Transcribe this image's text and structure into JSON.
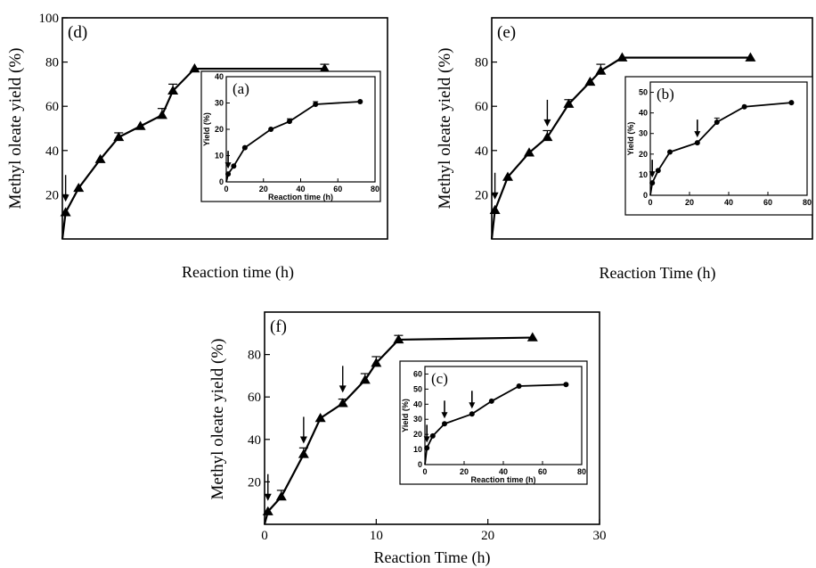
{
  "chart_data": [
    {
      "id": "d",
      "type": "line",
      "panel_label": "(d)",
      "xlabel": "Reaction time (h)",
      "ylabel": "Methyl oleate yield (%)",
      "x_tick_labels": [],
      "y_ticks": [
        20,
        40,
        60,
        80,
        100
      ],
      "xlim": [
        0,
        30
      ],
      "ylim": [
        0,
        100
      ],
      "grid": false,
      "series": [
        {
          "marker": "triangle",
          "x": [
            0,
            0.3,
            1.5,
            3.5,
            5.2,
            7.2,
            9.2,
            10.2,
            12.2,
            24.2
          ],
          "y": [
            0,
            12,
            23,
            36,
            46,
            51,
            56,
            67,
            77,
            77
          ],
          "error_up": [
            0,
            0,
            0,
            0,
            2,
            0,
            3,
            3,
            0,
            2
          ]
        }
      ],
      "arrows_x": [
        0.3
      ],
      "inset": {
        "label": "(a)",
        "xlabel": "Reaction time (h)",
        "ylabel": "Yield (%)",
        "x_ticks": [
          0,
          20,
          40,
          60,
          80
        ],
        "y_ticks": [
          0,
          10,
          20,
          30,
          40
        ],
        "xlim": [
          0,
          80
        ],
        "ylim": [
          0,
          40
        ],
        "x": [
          0,
          1,
          4,
          10,
          24,
          34,
          48,
          72
        ],
        "y": [
          0,
          3,
          6,
          13,
          20,
          23,
          29.5,
          30.5
        ],
        "error_up": [
          0,
          0,
          0,
          0,
          0,
          1,
          1,
          0
        ],
        "arrows_x": [
          1
        ]
      }
    },
    {
      "id": "e",
      "type": "line",
      "panel_label": "(e)",
      "xlabel": "Reaction Time (h)",
      "ylabel": "Methyl oleate yield (%)",
      "x_tick_labels": [],
      "y_ticks": [
        20,
        40,
        60,
        80
      ],
      "xlim": [
        0,
        30
      ],
      "ylim": [
        0,
        100
      ],
      "grid": false,
      "series": [
        {
          "marker": "triangle",
          "x": [
            0,
            0.3,
            1.5,
            3.5,
            5.2,
            7.2,
            9.2,
            10.2,
            12.2,
            24.2
          ],
          "y": [
            0,
            13,
            28,
            39,
            46,
            61,
            71,
            76,
            82,
            82
          ],
          "error_up": [
            0,
            0,
            0,
            0,
            3,
            2,
            0,
            3,
            0,
            0
          ]
        }
      ],
      "arrows_x": [
        0.3,
        5.2
      ],
      "inset": {
        "label": "(b)",
        "xlabel": "",
        "ylabel": "Yield (%)",
        "x_ticks": [
          0,
          20,
          40,
          60,
          80
        ],
        "y_ticks": [
          0,
          10,
          20,
          30,
          40,
          50
        ],
        "xlim": [
          0,
          80
        ],
        "ylim": [
          0,
          55
        ],
        "x": [
          0,
          1,
          4,
          10,
          24,
          34,
          48,
          72
        ],
        "y": [
          0,
          6,
          12,
          21,
          25.5,
          35.5,
          43,
          45
        ],
        "error_up": [
          0,
          0,
          0,
          0,
          0,
          2,
          0,
          0
        ],
        "arrows_x": [
          1,
          24
        ]
      }
    },
    {
      "id": "f",
      "type": "line",
      "panel_label": "(f)",
      "xlabel": "Reaction Time (h)",
      "ylabel": "Methyl oleate yield (%)",
      "x_ticks": [
        0,
        10,
        20,
        30
      ],
      "y_ticks": [
        20,
        40,
        60,
        80
      ],
      "xlim": [
        0,
        30
      ],
      "ylim": [
        0,
        100
      ],
      "grid": false,
      "series": [
        {
          "marker": "triangle",
          "x": [
            0,
            0.3,
            1.5,
            3.5,
            5.0,
            7.0,
            9.0,
            10.0,
            12.0,
            24.0
          ],
          "y": [
            0,
            6,
            13,
            33,
            50,
            57,
            68,
            76,
            87,
            88
          ],
          "error_up": [
            0,
            0,
            3,
            3,
            0,
            2,
            3,
            3,
            2,
            0
          ]
        }
      ],
      "arrows_x": [
        0.3,
        3.5,
        7.0
      ],
      "inset": {
        "label": "(c)",
        "xlabel": "Reaction time (h)",
        "ylabel": "Yield (%)",
        "x_ticks": [
          0,
          20,
          40,
          60,
          80
        ],
        "y_ticks": [
          0,
          10,
          20,
          30,
          40,
          50,
          60
        ],
        "xlim": [
          0,
          80
        ],
        "ylim": [
          0,
          65
        ],
        "x": [
          0,
          1,
          4,
          10,
          24,
          34,
          48,
          72
        ],
        "y": [
          0,
          11,
          19,
          27,
          33.5,
          42,
          52,
          53
        ],
        "error_up": [
          0,
          0,
          0,
          0,
          0,
          0,
          0,
          0
        ],
        "arrows_x": [
          1,
          10,
          24
        ]
      }
    }
  ]
}
